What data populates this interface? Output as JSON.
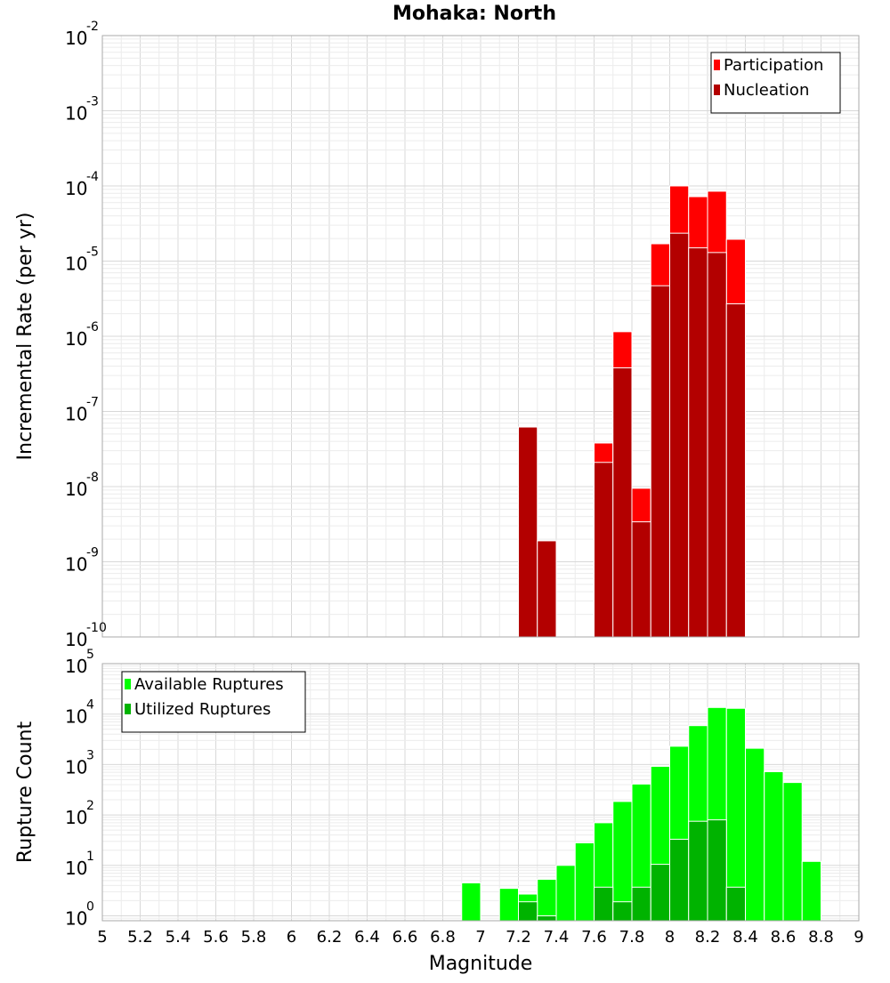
{
  "chart_data": [
    {
      "type": "bar",
      "title": "Mohaka: North",
      "xlabel": "",
      "ylabel": "Incremental Rate (per yr)",
      "y_scale": "log",
      "ylim": [
        1e-10,
        0.01
      ],
      "xlim": [
        5,
        9
      ],
      "y_ticks": [
        {
          "base": "10",
          "exp": "-10"
        },
        {
          "base": "10",
          "exp": "-9"
        },
        {
          "base": "10",
          "exp": "-8"
        },
        {
          "base": "10",
          "exp": "-7"
        },
        {
          "base": "10",
          "exp": "-6"
        },
        {
          "base": "10",
          "exp": "-5"
        },
        {
          "base": "10",
          "exp": "-4"
        },
        {
          "base": "10",
          "exp": "-3"
        },
        {
          "base": "10",
          "exp": "-2"
        }
      ],
      "grid": true,
      "legend_position": "top-right",
      "bar_width": 0.1,
      "series": [
        {
          "name": "Participation",
          "color": "#ff0000",
          "x": [
            7.25,
            7.35,
            7.65,
            7.75,
            7.85,
            7.95,
            8.05,
            8.15,
            8.25,
            8.35
          ],
          "values": [
            6.2e-08,
            1.9e-09,
            3.8e-08,
            1.15e-06,
            9.5e-09,
            1.7e-05,
            0.0001,
            7.2e-05,
            8.5e-05,
            1.95e-05
          ]
        },
        {
          "name": "Nucleation",
          "color": "#b30000",
          "x": [
            7.25,
            7.35,
            7.65,
            7.75,
            7.85,
            7.95,
            8.05,
            8.15,
            8.25,
            8.35
          ],
          "values": [
            6.2e-08,
            1.9e-09,
            2.1e-08,
            3.8e-07,
            3.4e-09,
            4.7e-06,
            2.35e-05,
            1.5e-05,
            1.3e-05,
            2.7e-06
          ]
        }
      ]
    },
    {
      "type": "bar",
      "title": "",
      "xlabel": "Magnitude",
      "ylabel": "Rupture Count",
      "y_scale": "log",
      "ylim": [
        0.8,
        100000
      ],
      "xlim": [
        5,
        9
      ],
      "y_ticks": [
        {
          "base": "10",
          "exp": "0"
        },
        {
          "base": "10",
          "exp": "1"
        },
        {
          "base": "10",
          "exp": "2"
        },
        {
          "base": "10",
          "exp": "3"
        },
        {
          "base": "10",
          "exp": "4"
        },
        {
          "base": "10",
          "exp": "5"
        }
      ],
      "x_ticks": [
        "5",
        "5.2",
        "5.4",
        "5.6",
        "5.8",
        "6",
        "6.2",
        "6.4",
        "6.6",
        "6.8",
        "7",
        "7.2",
        "7.4",
        "7.6",
        "7.8",
        "8",
        "8.2",
        "8.4",
        "8.6",
        "8.8",
        "9"
      ],
      "grid": true,
      "legend_position": "top-left",
      "bar_width": 0.1,
      "series": [
        {
          "name": "Available Ruptures",
          "color": "#00ff00",
          "x": [
            6.95,
            7.15,
            7.25,
            7.35,
            7.45,
            7.55,
            7.65,
            7.75,
            7.85,
            7.95,
            8.05,
            8.15,
            8.25,
            8.35,
            8.45,
            8.55,
            8.65,
            8.75
          ],
          "values": [
            4.5,
            3.5,
            2.7,
            5.3,
            10,
            28,
            70,
            185,
            410,
            920,
            2300,
            5900,
            13500,
            13000,
            2100,
            720,
            440,
            12
          ]
        },
        {
          "name": "Utilized Ruptures",
          "color": "#00b300",
          "x": [
            7.25,
            7.35,
            7.65,
            7.75,
            7.85,
            7.95,
            8.05,
            8.15,
            8.25,
            8.35
          ],
          "values": [
            1.9,
            1.0,
            3.7,
            1.9,
            3.7,
            10.5,
            33,
            75,
            80,
            3.7
          ]
        }
      ]
    }
  ]
}
